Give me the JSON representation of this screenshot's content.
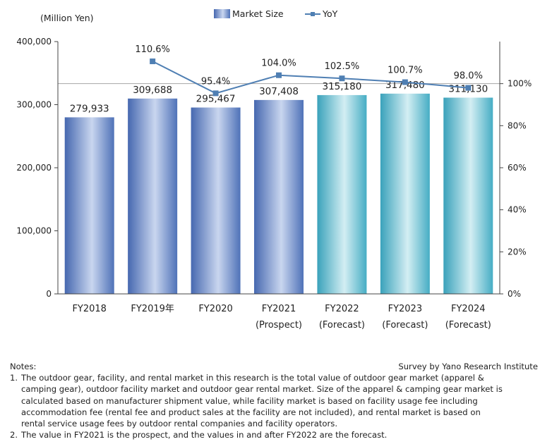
{
  "chart_data": {
    "type": "bar",
    "title": "",
    "unit_label": "(Million Yen)",
    "categories": [
      {
        "line1": "FY2018",
        "line2": ""
      },
      {
        "line1": "FY2019年",
        "line2": ""
      },
      {
        "line1": "FY2020",
        "line2": ""
      },
      {
        "line1": "FY2021",
        "line2": "(Prospect)"
      },
      {
        "line1": "FY2022",
        "line2": "(Forecast)"
      },
      {
        "line1": "FY2023",
        "line2": "(Forecast)"
      },
      {
        "line1": "FY2024",
        "line2": "(Forecast)"
      }
    ],
    "series": [
      {
        "name": "Market Size",
        "type": "bar",
        "axis": "left",
        "values": [
          279933,
          309688,
          295467,
          307408,
          315180,
          317480,
          311130
        ],
        "labels": [
          "279,933",
          "309,688",
          "295,467",
          "307,408",
          "315,180",
          "317,480",
          "311,130"
        ],
        "color": "#4f72b8",
        "forecast_color": "#3fa9c0"
      },
      {
        "name": "YoY",
        "type": "line",
        "axis": "right",
        "values": [
          null,
          110.6,
          95.4,
          104.0,
          102.5,
          100.7,
          98.0
        ],
        "labels": [
          "",
          "110.6%",
          "95.4%",
          "104.0%",
          "102.5%",
          "100.7%",
          "98.0%"
        ],
        "color": "#4f7fb3"
      }
    ],
    "y_left": {
      "min": 0,
      "max": 400000,
      "ticks": [
        0,
        100000,
        200000,
        300000,
        400000
      ],
      "tick_labels": [
        "0",
        "100,000",
        "200,000",
        "300,000",
        "400,000"
      ]
    },
    "y_right": {
      "min": 0,
      "max": 120,
      "ticks": [
        0,
        20,
        40,
        60,
        80,
        100
      ],
      "tick_labels": [
        "0%",
        "20%",
        "40%",
        "60%",
        "80%",
        "100%"
      ]
    },
    "reference_line_value": 100,
    "legend_position": "top-center",
    "grid": false
  },
  "notes": {
    "heading": "Notes:",
    "source": "Survey by Yano Research Institute",
    "items": [
      {
        "num": "1.",
        "lines": [
          "The outdoor gear, facility, and rental market in this research is the total value of outdoor gear market (apparel &",
          "camping gear), outdoor facility market and outdoor gear rental market. Size of the apparel & camping gear market is",
          "calculated based on manufacturer shipment value, while facility market is based on facility usage fee including",
          "accommodation fee (rental fee and product sales at the facility are not included), and rental market is based on",
          "rental service usage fees by outdoor rental companies and facility operators."
        ]
      },
      {
        "num": "2.",
        "lines": [
          "The value in FY2021 is the prospect, and the values in and after FY2022 are the forecast."
        ]
      }
    ]
  }
}
